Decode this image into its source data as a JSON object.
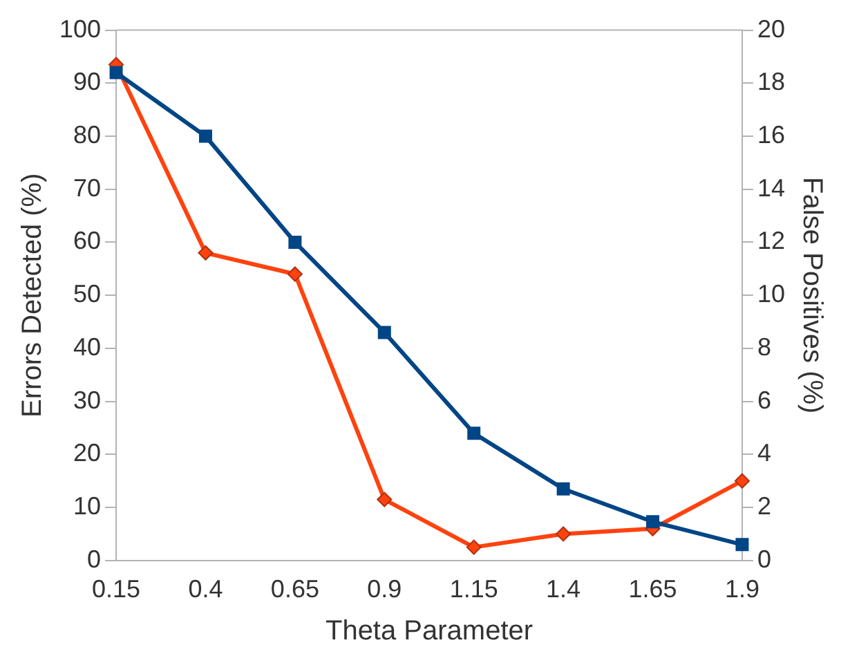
{
  "chart_data": {
    "type": "line",
    "xlabel": "Theta Parameter",
    "ylabel": "Errors Detected (%)",
    "y2label": "False Positives (%)",
    "categories": [
      "0.15",
      "0.4",
      "0.65",
      "0.9",
      "1.15",
      "1.4",
      "1.65",
      "1.9"
    ],
    "series": [
      {
        "color": "#004586",
        "marker": "square",
        "values": [
          92,
          80,
          60,
          43,
          24,
          13.5,
          7.3,
          3
        ]
      },
      {
        "color": "#ff420e",
        "marker": "diamond",
        "axis": "y2",
        "values": [
          18.7,
          11.6,
          10.8,
          2.3,
          0.5,
          1.0,
          1.2,
          3.0
        ]
      }
    ],
    "ylim": [
      0,
      100
    ],
    "yticks": [
      0,
      10,
      20,
      30,
      40,
      50,
      60,
      70,
      80,
      90,
      100
    ],
    "y2lim": [
      0,
      20
    ],
    "y2ticks": [
      0,
      2,
      4,
      6,
      8,
      10,
      12,
      14,
      16,
      18,
      20
    ],
    "grid": false,
    "legend": false,
    "line_style": "solid"
  }
}
